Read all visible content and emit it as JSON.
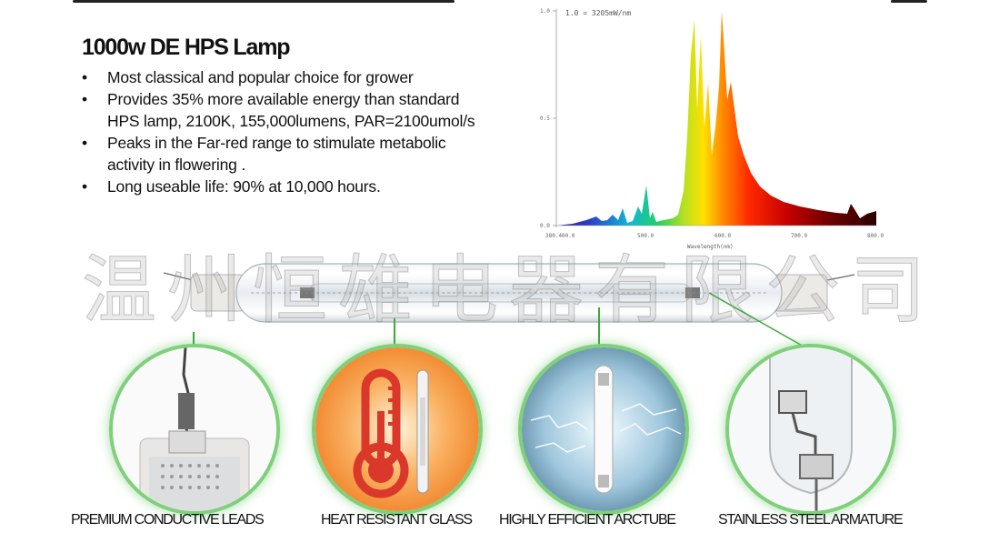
{
  "product": {
    "title": "1000w DE HPS Lamp",
    "features": [
      "Most classical and popular choice for grower",
      "Provides 35% more available energy than standard HPS lamp, 2100K, 155,000lumens, PAR=2100umol/s",
      "Peaks in the Far-red range to stimulate metabolic activity in flowering .",
      "Long useable life: 90% at 10,000 hours."
    ]
  },
  "spectrum": {
    "scale_note": "1.0 = 3205mW/nm",
    "y_ticks": [
      "1.0",
      "0.5",
      "0.0"
    ],
    "x_ticks": [
      "380.400.0",
      "500.0",
      "600.0",
      "700.0",
      "800.0"
    ],
    "x_label": "Wavelength(nm)"
  },
  "watermark": "温州恒雄电器有限公司",
  "details": [
    {
      "caption": "PREMIUM CONDUCTIVE LEADS"
    },
    {
      "caption": "HEAT RESISTANT GLASS"
    },
    {
      "caption": "HIGHLY EFFICIENT ARCTUBE"
    },
    {
      "caption": "STAINLESS STEEL ARMATURE"
    }
  ],
  "colors": {
    "ring": "#7ed07a",
    "leader": "#3da83d",
    "thermometer": "#d9382b",
    "glow": "#f39a3c"
  }
}
